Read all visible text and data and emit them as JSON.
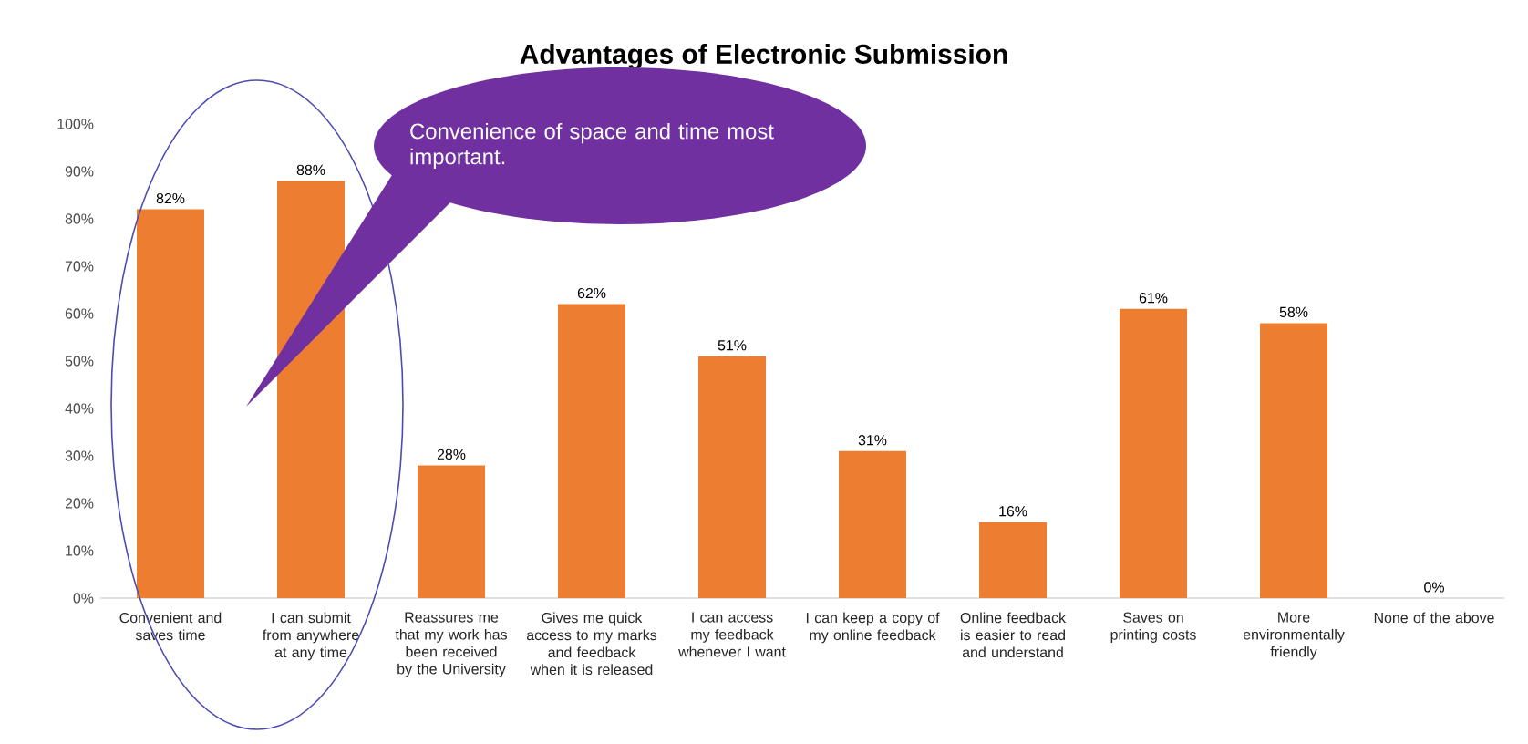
{
  "chart_data": {
    "type": "bar",
    "title": "Advantages of Electronic Submission",
    "categories": [
      "Convenient and saves time",
      "I can submit from anywhere at any time",
      "Reassures me that my work has been received by the University",
      "Gives me quick access to my marks and feedback when it is released",
      "I can access my feedback whenever I want",
      "I can keep a copy of my online feedback",
      "Online feedback is easier to read and understand",
      "Saves on printing costs",
      "More environmentally friendly",
      "None of the above"
    ],
    "values": [
      82,
      88,
      28,
      62,
      51,
      31,
      16,
      61,
      58,
      0
    ],
    "value_labels": [
      "82%",
      "88%",
      "28%",
      "62%",
      "51%",
      "31%",
      "16%",
      "61%",
      "58%",
      "0%"
    ],
    "color": "#ed7d31",
    "ylim": [
      0,
      100
    ],
    "yticks": [
      {
        "value": 0,
        "label": "0%"
      },
      {
        "value": 10,
        "label": "10%"
      },
      {
        "value": 20,
        "label": "20%"
      },
      {
        "value": 30,
        "label": "30%"
      },
      {
        "value": 40,
        "label": "40%"
      },
      {
        "value": 50,
        "label": "50%"
      },
      {
        "value": 60,
        "label": "60%"
      },
      {
        "value": 70,
        "label": "70%"
      },
      {
        "value": 80,
        "label": "80%"
      },
      {
        "value": 90,
        "label": "90%"
      },
      {
        "value": 100,
        "label": "100%"
      }
    ],
    "annotations": [
      "Convenience of space and time most important."
    ]
  }
}
